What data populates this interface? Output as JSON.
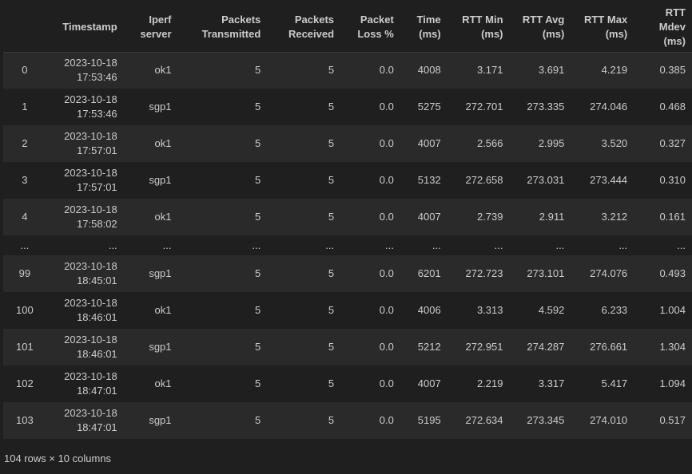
{
  "table": {
    "columns": [
      {
        "key": "index",
        "lines": [
          ""
        ]
      },
      {
        "key": "timestamp",
        "lines": [
          "Timestamp"
        ]
      },
      {
        "key": "server",
        "lines": [
          "Iperf",
          "server"
        ]
      },
      {
        "key": "tx",
        "lines": [
          "Packets",
          "Transmitted"
        ]
      },
      {
        "key": "rx",
        "lines": [
          "Packets",
          "Received"
        ]
      },
      {
        "key": "loss",
        "lines": [
          "Packet",
          "Loss %"
        ]
      },
      {
        "key": "time",
        "lines": [
          "Time",
          "(ms)"
        ]
      },
      {
        "key": "rtt_min",
        "lines": [
          "RTT Min",
          "(ms)"
        ]
      },
      {
        "key": "rtt_avg",
        "lines": [
          "RTT Avg",
          "(ms)"
        ]
      },
      {
        "key": "rtt_max",
        "lines": [
          "RTT Max",
          "(ms)"
        ]
      },
      {
        "key": "rtt_mdev",
        "lines": [
          "RTT",
          "Mdev",
          "(ms)"
        ]
      }
    ],
    "rows": [
      {
        "index": "0",
        "date": "2023-10-18",
        "time_of_day": "17:53:46",
        "server": "ok1",
        "tx": "5",
        "rx": "5",
        "loss": "0.0",
        "time": "4008",
        "rtt_min": "3.171",
        "rtt_avg": "3.691",
        "rtt_max": "4.219",
        "rtt_mdev": "0.385"
      },
      {
        "index": "1",
        "date": "2023-10-18",
        "time_of_day": "17:53:46",
        "server": "sgp1",
        "tx": "5",
        "rx": "5",
        "loss": "0.0",
        "time": "5275",
        "rtt_min": "272.701",
        "rtt_avg": "273.335",
        "rtt_max": "274.046",
        "rtt_mdev": "0.468"
      },
      {
        "index": "2",
        "date": "2023-10-18",
        "time_of_day": "17:57:01",
        "server": "ok1",
        "tx": "5",
        "rx": "5",
        "loss": "0.0",
        "time": "4007",
        "rtt_min": "2.566",
        "rtt_avg": "2.995",
        "rtt_max": "3.520",
        "rtt_mdev": "0.327"
      },
      {
        "index": "3",
        "date": "2023-10-18",
        "time_of_day": "17:57:01",
        "server": "sgp1",
        "tx": "5",
        "rx": "5",
        "loss": "0.0",
        "time": "5132",
        "rtt_min": "272.658",
        "rtt_avg": "273.031",
        "rtt_max": "273.444",
        "rtt_mdev": "0.310"
      },
      {
        "index": "4",
        "date": "2023-10-18",
        "time_of_day": "17:58:02",
        "server": "ok1",
        "tx": "5",
        "rx": "5",
        "loss": "0.0",
        "time": "4007",
        "rtt_min": "2.739",
        "rtt_avg": "2.911",
        "rtt_max": "3.212",
        "rtt_mdev": "0.161"
      },
      {
        "ellipsis": true,
        "index": "...",
        "date": "...",
        "time_of_day": "",
        "server": "...",
        "tx": "...",
        "rx": "...",
        "loss": "...",
        "time": "...",
        "rtt_min": "...",
        "rtt_avg": "...",
        "rtt_max": "...",
        "rtt_mdev": "..."
      },
      {
        "index": "99",
        "date": "2023-10-18",
        "time_of_day": "18:45:01",
        "server": "sgp1",
        "tx": "5",
        "rx": "5",
        "loss": "0.0",
        "time": "6201",
        "rtt_min": "272.723",
        "rtt_avg": "273.101",
        "rtt_max": "274.076",
        "rtt_mdev": "0.493"
      },
      {
        "index": "100",
        "date": "2023-10-18",
        "time_of_day": "18:46:01",
        "server": "ok1",
        "tx": "5",
        "rx": "5",
        "loss": "0.0",
        "time": "4006",
        "rtt_min": "3.313",
        "rtt_avg": "4.592",
        "rtt_max": "6.233",
        "rtt_mdev": "1.004"
      },
      {
        "index": "101",
        "date": "2023-10-18",
        "time_of_day": "18:46:01",
        "server": "sgp1",
        "tx": "5",
        "rx": "5",
        "loss": "0.0",
        "time": "5212",
        "rtt_min": "272.951",
        "rtt_avg": "274.287",
        "rtt_max": "276.661",
        "rtt_mdev": "1.304"
      },
      {
        "index": "102",
        "date": "2023-10-18",
        "time_of_day": "18:47:01",
        "server": "ok1",
        "tx": "5",
        "rx": "5",
        "loss": "0.0",
        "time": "4007",
        "rtt_min": "2.219",
        "rtt_avg": "3.317",
        "rtt_max": "5.417",
        "rtt_mdev": "1.094"
      },
      {
        "index": "103",
        "date": "2023-10-18",
        "time_of_day": "18:47:01",
        "server": "sgp1",
        "tx": "5",
        "rx": "5",
        "loss": "0.0",
        "time": "5195",
        "rtt_min": "272.634",
        "rtt_avg": "273.345",
        "rtt_max": "274.010",
        "rtt_mdev": "0.517"
      }
    ]
  },
  "footer": {
    "shape_text": "104 rows × 10 columns"
  }
}
